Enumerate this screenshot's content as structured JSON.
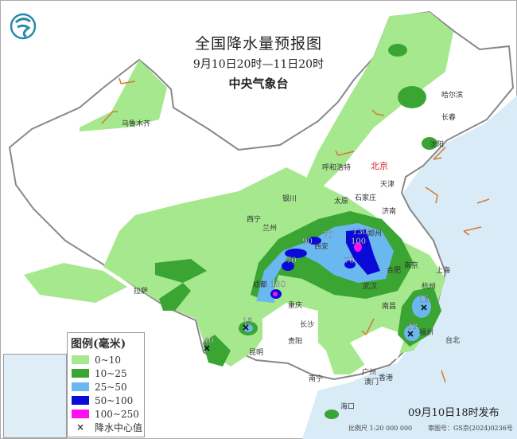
{
  "header": {
    "title": "全国降水量预报图",
    "period": "9月10日20时—11日20时",
    "issuer": "中央气象台"
  },
  "legend": {
    "title": "图例(毫米)",
    "items": [
      {
        "label": "0~10",
        "color": "#a6e88e"
      },
      {
        "label": "10~25",
        "color": "#3aa532"
      },
      {
        "label": "25~50",
        "color": "#6bb8f0"
      },
      {
        "label": "50~100",
        "color": "#0a0ad8"
      },
      {
        "label": "100~250",
        "color": "#ff10f0"
      }
    ],
    "center_label": "降水中心值",
    "center_icon": "x-mark-icon"
  },
  "cities": [
    {
      "name": "乌鲁木齐"
    },
    {
      "name": "哈尔滨"
    },
    {
      "name": "长春"
    },
    {
      "name": "沈阳"
    },
    {
      "name": "呼和浩特"
    },
    {
      "name": "北京"
    },
    {
      "name": "天津"
    },
    {
      "name": "石家庄"
    },
    {
      "name": "太原"
    },
    {
      "name": "济南"
    },
    {
      "name": "银川"
    },
    {
      "name": "西宁"
    },
    {
      "name": "兰州"
    },
    {
      "name": "西安"
    },
    {
      "name": "郑州"
    },
    {
      "name": "南京"
    },
    {
      "name": "合肥"
    },
    {
      "name": "上海"
    },
    {
      "name": "杭州"
    },
    {
      "name": "武汉"
    },
    {
      "name": "成都"
    },
    {
      "name": "重庆"
    },
    {
      "name": "拉萨"
    },
    {
      "name": "长沙"
    },
    {
      "name": "南昌"
    },
    {
      "name": "福州"
    },
    {
      "name": "台北"
    },
    {
      "name": "贵阳"
    },
    {
      "name": "昆明"
    },
    {
      "name": "南宁"
    },
    {
      "name": "广州"
    },
    {
      "name": "澳门"
    },
    {
      "name": "香港"
    },
    {
      "name": "海口"
    }
  ],
  "precip_centers": [
    "130",
    "100",
    "70",
    "70",
    "90",
    "70",
    "130",
    "15",
    "40",
    "15",
    "18"
  ],
  "footer": {
    "issued": "09月10日18时发布",
    "scale": "比例尺 1:20 000 000",
    "approval": "审图号：GS京(2024)0236号"
  },
  "colors": {
    "sea": "#d8ebf7",
    "border": "#888888",
    "wind_barb": "#d87830",
    "capital": "#e02020"
  }
}
